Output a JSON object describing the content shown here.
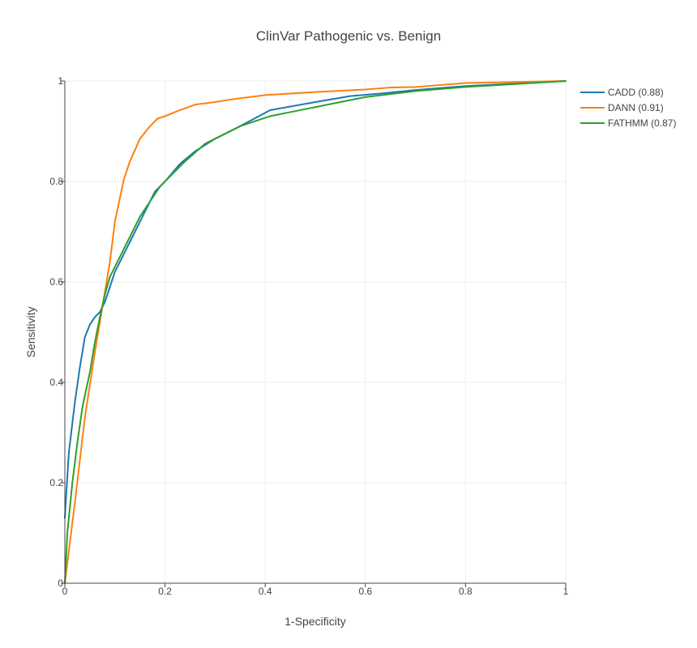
{
  "chart_data": {
    "type": "line",
    "title": "ClinVar Pathogenic vs. Benign",
    "xlabel": "1-Specificity",
    "ylabel": "Sensitivity",
    "xlim": [
      0,
      1
    ],
    "ylim": [
      0,
      1
    ],
    "x_ticks": [
      0,
      0.2,
      0.4,
      0.6,
      0.8,
      1
    ],
    "x_tick_labels": [
      "0",
      "0.2",
      "0.4",
      "0.6",
      "0.8",
      "1"
    ],
    "y_ticks": [
      0,
      0.2,
      0.4,
      0.6,
      0.8,
      1
    ],
    "y_tick_labels": [
      "0",
      "0.2",
      "0.4",
      "0.6",
      "0.8",
      "1"
    ],
    "grid": true,
    "legend_position": "top-right",
    "series": [
      {
        "name": "CADD (0.88)",
        "color": "#1f77b4",
        "x": [
          0,
          0.003,
          0.008,
          0.014,
          0.02,
          0.03,
          0.04,
          0.05,
          0.06,
          0.07,
          0.08,
          0.09,
          0.1,
          0.12,
          0.14,
          0.16,
          0.18,
          0.2,
          0.23,
          0.26,
          0.3,
          0.35,
          0.41,
          0.5,
          0.57,
          0.63,
          0.7,
          0.8,
          0.9,
          1.0
        ],
        "y": [
          0.13,
          0.18,
          0.26,
          0.31,
          0.36,
          0.43,
          0.49,
          0.515,
          0.53,
          0.54,
          0.56,
          0.59,
          0.62,
          0.66,
          0.7,
          0.74,
          0.78,
          0.8,
          0.835,
          0.86,
          0.885,
          0.91,
          0.942,
          0.958,
          0.97,
          0.975,
          0.982,
          0.99,
          0.995,
          1.0
        ]
      },
      {
        "name": "DANN (0.91)",
        "color": "#ff7f0e",
        "x": [
          0,
          0.02,
          0.04,
          0.06,
          0.07,
          0.08,
          0.09,
          0.1,
          0.118,
          0.13,
          0.15,
          0.17,
          0.185,
          0.2,
          0.23,
          0.26,
          0.3,
          0.33,
          0.4,
          0.5,
          0.6,
          0.65,
          0.7,
          0.8,
          0.9,
          1.0
        ],
        "y": [
          0,
          0.16,
          0.33,
          0.46,
          0.52,
          0.58,
          0.64,
          0.72,
          0.805,
          0.84,
          0.885,
          0.91,
          0.925,
          0.93,
          0.942,
          0.953,
          0.958,
          0.963,
          0.972,
          0.978,
          0.983,
          0.987,
          0.988,
          0.996,
          0.998,
          1.0
        ]
      },
      {
        "name": "FATHMM (0.87)",
        "color": "#2ca02c",
        "x": [
          0,
          0.005,
          0.015,
          0.025,
          0.035,
          0.05,
          0.06,
          0.07,
          0.08,
          0.09,
          0.1,
          0.12,
          0.15,
          0.17,
          0.19,
          0.21,
          0.24,
          0.28,
          0.32,
          0.35,
          0.38,
          0.41,
          0.45,
          0.5,
          0.55,
          0.6,
          0.7,
          0.8,
          0.9,
          1.0
        ],
        "y": [
          0,
          0.1,
          0.2,
          0.28,
          0.35,
          0.42,
          0.48,
          0.53,
          0.575,
          0.61,
          0.63,
          0.67,
          0.73,
          0.76,
          0.79,
          0.81,
          0.84,
          0.875,
          0.895,
          0.91,
          0.92,
          0.93,
          0.938,
          0.948,
          0.958,
          0.968,
          0.98,
          0.988,
          0.994,
          1.0
        ]
      }
    ]
  }
}
